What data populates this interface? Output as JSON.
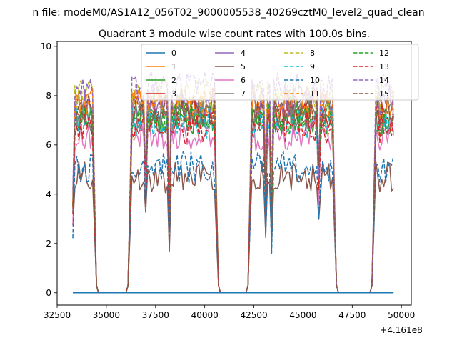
{
  "chart_data": {
    "type": "line",
    "suptitle": "n file: modeM0/AS1A12_056T02_9000005538_40269cztM0_level2_quad_clean",
    "title": "Quadrant 3 module wise count rates with 100.0s bins.",
    "xlabel": "",
    "ylabel": "",
    "x_offset_label": "+4.161e8",
    "xlim": [
      32500,
      50500
    ],
    "ylim": [
      -0.5,
      10.2
    ],
    "xticks": [
      32500,
      35000,
      37500,
      40000,
      42500,
      45000,
      47500,
      50000
    ],
    "xtick_labels": [
      "32500",
      "35000",
      "37500",
      "40000",
      "42500",
      "45000",
      "47500",
      "50000"
    ],
    "yticks": [
      0,
      2,
      4,
      6,
      8,
      10
    ],
    "ytick_labels": [
      "0",
      "2",
      "4",
      "6",
      "8",
      "10"
    ],
    "x_start": 33300,
    "x_step": 100,
    "n_points": 164,
    "segments": [
      {
        "on_start": 33300,
        "on_end": 34400,
        "off_start": 34600,
        "off_end": 36000
      },
      {
        "on_start": 36200,
        "on_end": 40600,
        "off_start": 40800,
        "off_end": 42100
      },
      {
        "on_start": 42300,
        "on_end": 46600,
        "off_start": 46800,
        "off_end": 48400
      },
      {
        "on_start": 48600,
        "on_end": 49700,
        "off_start": null,
        "off_end": null
      }
    ],
    "dips": [
      {
        "x": 37000,
        "depth": 0.45
      },
      {
        "x": 38200,
        "depth": 0.6
      },
      {
        "x": 43100,
        "depth": 0.45
      },
      {
        "x": 43400,
        "depth": 0.6
      },
      {
        "x": 45800,
        "depth": 0.4
      }
    ],
    "series": [
      {
        "name": "0",
        "color": "#1f77b4",
        "style": "solid",
        "level": 0.0
      },
      {
        "name": "1",
        "color": "#ff7f0e",
        "style": "solid",
        "level": 7.6
      },
      {
        "name": "2",
        "color": "#2ca02c",
        "style": "solid",
        "level": 7.0
      },
      {
        "name": "3",
        "color": "#d62728",
        "style": "solid",
        "level": 7.3
      },
      {
        "name": "4",
        "color": "#9467bd",
        "style": "solid",
        "level": 7.8
      },
      {
        "name": "5",
        "color": "#8c564b",
        "style": "solid",
        "level": 4.7
      },
      {
        "name": "6",
        "color": "#e377c2",
        "style": "solid",
        "level": 6.4
      },
      {
        "name": "7",
        "color": "#7f7f7f",
        "style": "solid",
        "level": 7.2
      },
      {
        "name": "8",
        "color": "#bcbd22",
        "style": "dashed",
        "level": 8.0
      },
      {
        "name": "9",
        "color": "#17becf",
        "style": "dashed",
        "level": 6.9
      },
      {
        "name": "10",
        "color": "#1f77b4",
        "style": "dashed",
        "level": 5.1
      },
      {
        "name": "11",
        "color": "#ff7f0e",
        "style": "dashed",
        "level": 7.7
      },
      {
        "name": "12",
        "color": "#2ca02c",
        "style": "dashed",
        "level": 7.1
      },
      {
        "name": "13",
        "color": "#d62728",
        "style": "dashed",
        "level": 6.7
      },
      {
        "name": "14",
        "color": "#9467bd",
        "style": "dashed",
        "level": 8.4
      },
      {
        "name": "15",
        "color": "#8c564b",
        "style": "dashed",
        "level": 7.4
      }
    ],
    "legend_position": "top-center",
    "legend_columns": 4
  }
}
